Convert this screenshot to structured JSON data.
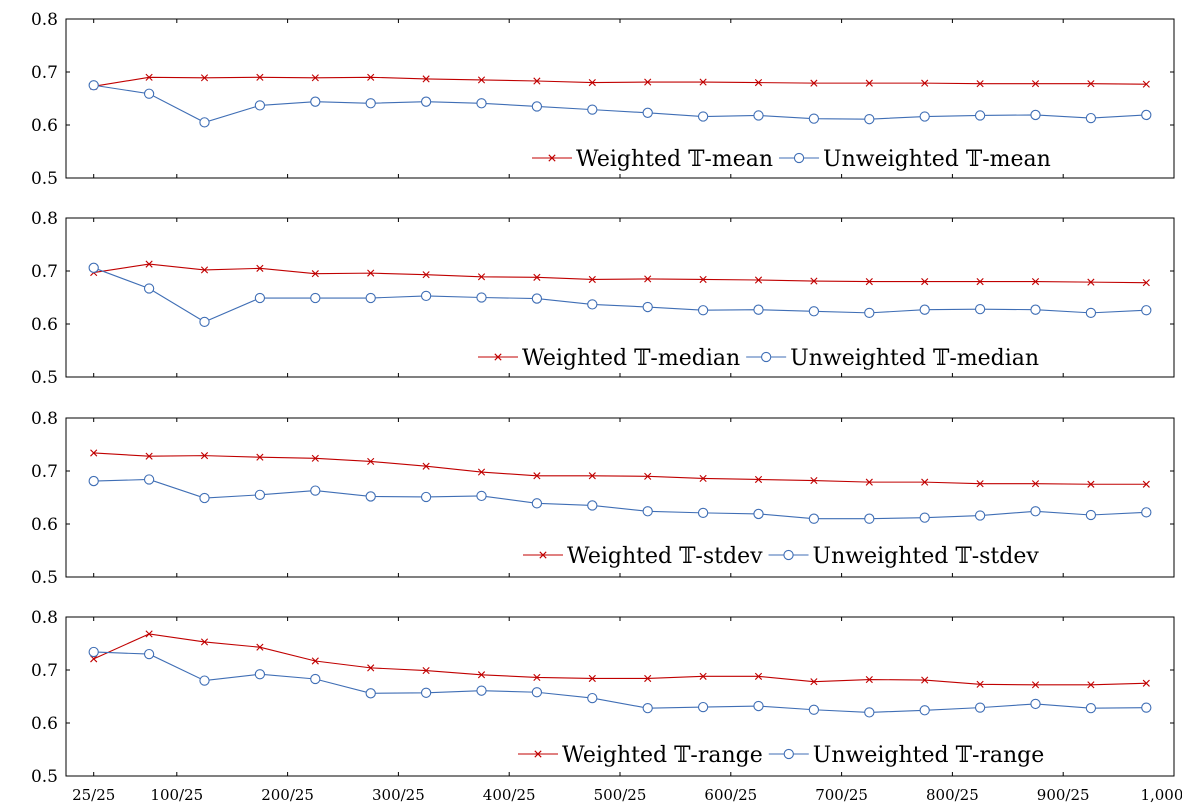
{
  "x_tick_labels": [
    "25/25",
    "100/25",
    "200/25",
    "300/25",
    "400/25",
    "500/25",
    "600/25",
    "700/25",
    "800/25",
    "900/25",
    "1,000/25"
  ],
  "y_tick_labels": [
    "0.5",
    "0.6",
    "0.7",
    "0.8"
  ],
  "colors": {
    "weighted": "#c00000",
    "unweighted": "#3f6eb5"
  },
  "chart_data": [
    {
      "type": "line",
      "ylim": [
        0.5,
        0.8
      ],
      "x": [
        25,
        75,
        125,
        175,
        225,
        275,
        325,
        375,
        425,
        475,
        525,
        575,
        625,
        675,
        725,
        775,
        825,
        875,
        925,
        975
      ],
      "series": [
        {
          "name": "Weighted 𝕋-mean",
          "marker": "x",
          "values": [
            0.673,
            0.69,
            0.689,
            0.69,
            0.689,
            0.69,
            0.687,
            0.685,
            0.683,
            0.68,
            0.681,
            0.681,
            0.68,
            0.679,
            0.679,
            0.679,
            0.678,
            0.678,
            0.678,
            0.677
          ]
        },
        {
          "name": "Unweighted 𝕋-mean",
          "marker": "o",
          "values": [
            0.675,
            0.659,
            0.605,
            0.637,
            0.644,
            0.641,
            0.644,
            0.641,
            0.635,
            0.629,
            0.623,
            0.616,
            0.618,
            0.612,
            0.611,
            0.616,
            0.618,
            0.619,
            0.613,
            0.619
          ]
        }
      ]
    },
    {
      "type": "line",
      "ylim": [
        0.5,
        0.8
      ],
      "x": [
        25,
        75,
        125,
        175,
        225,
        275,
        325,
        375,
        425,
        475,
        525,
        575,
        625,
        675,
        725,
        775,
        825,
        875,
        925,
        975
      ],
      "series": [
        {
          "name": "Weighted 𝕋-median",
          "marker": "x",
          "values": [
            0.697,
            0.713,
            0.702,
            0.705,
            0.695,
            0.696,
            0.693,
            0.689,
            0.688,
            0.684,
            0.685,
            0.684,
            0.683,
            0.681,
            0.68,
            0.68,
            0.68,
            0.68,
            0.679,
            0.678
          ]
        },
        {
          "name": "Unweighted 𝕋-median",
          "marker": "o",
          "values": [
            0.706,
            0.667,
            0.604,
            0.649,
            0.649,
            0.649,
            0.653,
            0.65,
            0.648,
            0.637,
            0.632,
            0.626,
            0.627,
            0.624,
            0.621,
            0.627,
            0.628,
            0.627,
            0.621,
            0.626
          ]
        }
      ]
    },
    {
      "type": "line",
      "ylim": [
        0.5,
        0.8
      ],
      "x": [
        25,
        75,
        125,
        175,
        225,
        275,
        325,
        375,
        425,
        475,
        525,
        575,
        625,
        675,
        725,
        775,
        825,
        875,
        925,
        975
      ],
      "series": [
        {
          "name": "Weighted 𝕋-stdev",
          "marker": "x",
          "values": [
            0.734,
            0.728,
            0.729,
            0.726,
            0.724,
            0.718,
            0.709,
            0.698,
            0.691,
            0.691,
            0.69,
            0.686,
            0.684,
            0.682,
            0.679,
            0.679,
            0.676,
            0.676,
            0.675,
            0.675
          ]
        },
        {
          "name": "Unweighted 𝕋-stdev",
          "marker": "o",
          "values": [
            0.681,
            0.684,
            0.649,
            0.655,
            0.663,
            0.652,
            0.651,
            0.653,
            0.639,
            0.635,
            0.624,
            0.621,
            0.619,
            0.61,
            0.61,
            0.612,
            0.616,
            0.624,
            0.617,
            0.622
          ]
        }
      ]
    },
    {
      "type": "line",
      "ylim": [
        0.5,
        0.8
      ],
      "x": [
        25,
        75,
        125,
        175,
        225,
        275,
        325,
        375,
        425,
        475,
        525,
        575,
        625,
        675,
        725,
        775,
        825,
        875,
        925,
        975
      ],
      "series": [
        {
          "name": "Weighted 𝕋-range",
          "marker": "x",
          "values": [
            0.721,
            0.768,
            0.753,
            0.743,
            0.717,
            0.704,
            0.699,
            0.691,
            0.686,
            0.684,
            0.684,
            0.688,
            0.688,
            0.678,
            0.682,
            0.681,
            0.673,
            0.672,
            0.672,
            0.675
          ]
        },
        {
          "name": "Unweighted 𝕋-range",
          "marker": "o",
          "values": [
            0.734,
            0.73,
            0.68,
            0.692,
            0.683,
            0.656,
            0.657,
            0.661,
            0.658,
            0.647,
            0.628,
            0.63,
            0.632,
            0.625,
            0.62,
            0.624,
            0.629,
            0.636,
            0.628,
            0.629
          ]
        }
      ]
    }
  ]
}
